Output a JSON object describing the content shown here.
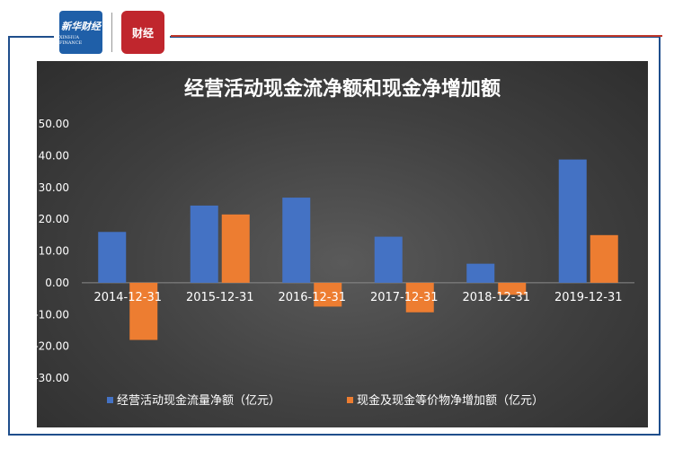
{
  "logos": {
    "left_cn": "新华财经",
    "left_en": "XINHUA FINANCE",
    "right_cn": "财经"
  },
  "chart_data": {
    "type": "bar",
    "title": "经营活动现金流净额和现金净增加额",
    "categories": [
      "2014-12-31",
      "2015-12-31",
      "2016-12-31",
      "2017-12-31",
      "2018-12-31",
      "2019-12-31"
    ],
    "series": [
      {
        "name": "经营活动现金流量净额（亿元）",
        "color": "#4472c4",
        "values": [
          16.0,
          24.3,
          26.8,
          14.5,
          6.0,
          38.8
        ]
      },
      {
        "name": "现金及现金等价物净增加额（亿元）",
        "color": "#ed7d31",
        "values": [
          -18.0,
          21.5,
          -7.5,
          -9.3,
          -3.8,
          15.0
        ]
      }
    ],
    "yticks": [
      "50.00",
      "40.00",
      "30.00",
      "20.00",
      "10.00",
      "0.00",
      "-10.00",
      "-20.00",
      "-30.00"
    ],
    "ylim": [
      -30,
      50
    ],
    "legend_position": "bottom",
    "grid": false
  }
}
